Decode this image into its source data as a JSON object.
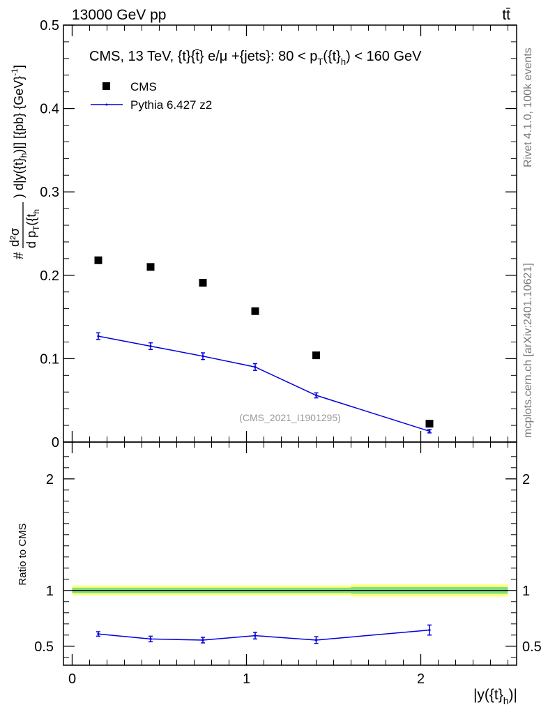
{
  "header": {
    "left_label": "13000 GeV pp",
    "right_label": "tt̄",
    "side_label_top": "Rivet 4.1.0,  100k events",
    "side_label_bottom": "mcplots.cern.ch [arXiv:2401.10621]"
  },
  "colors": {
    "data_marker": "#000000",
    "mc_line": "#0000dd",
    "band_yellow": "#ffff80",
    "band_green": "#7fe07f",
    "watermark": "#999999"
  },
  "chart_data": [
    {
      "panel": "main",
      "type": "scatter",
      "title": "CMS, 13 TeV, {t}{t̄} e/μ +{jets}: 80 <  p_T({t}_h) < 160 GeV",
      "title_main": "CMS, 13 TeV, {t}{t̄} e/μ +{jets}: 80 <  p",
      "title_sub1": "T",
      "title_mid": "({t}",
      "title_sub2": "h",
      "title_end": ") < 160 GeV",
      "ylabel": "#d²σ/d p_T({t}_h) d|y({t}_h)| [{pb} {GeV}⁻¹]",
      "ylabel_parts": {
        "hash": "#",
        "num": "d²σ",
        "den_a": "d p",
        "den_sub": "T",
        "den_b": "({t",
        "den_sub2": "h",
        "rest_a": ") d|y({t}",
        "rest_sub": "h",
        "rest_b": ")|] [{pb} {GeV}",
        "rest_sup": "-1",
        "rest_c": "]"
      },
      "xlim": [
        -0.05,
        2.55
      ],
      "ylim": [
        0,
        0.5
      ],
      "yticks": [
        0,
        0.1,
        0.2,
        0.3,
        0.4,
        0.5
      ],
      "ytick_labels": [
        "0",
        "0.1",
        "0.2",
        "0.3",
        "0.4",
        "0.5"
      ],
      "watermark": "(CMS_2021_I1901295)",
      "legend_position": "top-left",
      "series": [
        {
          "name": "CMS",
          "style": "markers",
          "x": [
            0.15,
            0.45,
            0.75,
            1.05,
            1.4,
            2.05
          ],
          "y": [
            0.218,
            0.21,
            0.191,
            0.157,
            0.104,
            0.022
          ]
        },
        {
          "name": "Pythia 6.427 z2",
          "style": "line",
          "x": [
            0.15,
            0.45,
            0.75,
            1.05,
            1.4,
            2.05
          ],
          "y": [
            0.127,
            0.115,
            0.103,
            0.09,
            0.056,
            0.013
          ],
          "yerr": [
            0.004,
            0.004,
            0.004,
            0.004,
            0.003,
            0.002
          ]
        }
      ]
    },
    {
      "panel": "ratio",
      "type": "line",
      "ylabel": "Ratio to CMS",
      "xlabel": "|y({t}_h)|",
      "xlabel_parts": {
        "a": "|y({t}",
        "sub": "h",
        "b": ")|"
      },
      "xlim": [
        -0.05,
        2.55
      ],
      "ylim": [
        0.33,
        2.33
      ],
      "xticks": [
        0,
        1,
        2
      ],
      "xtick_labels": [
        "0",
        "1",
        "2"
      ],
      "yticks": [
        0.5,
        1,
        2
      ],
      "ytick_labels": [
        "0.5",
        "1",
        "2"
      ],
      "band_edges": [
        0.0,
        0.3,
        0.6,
        0.9,
        1.2,
        1.6,
        2.5
      ],
      "band_outer": [
        0.045,
        0.045,
        0.045,
        0.045,
        0.045,
        0.055
      ],
      "band_inner": [
        0.025,
        0.025,
        0.025,
        0.025,
        0.025,
        0.03
      ],
      "series": [
        {
          "name": "Pythia 6.427 z2",
          "x": [
            0.15,
            0.45,
            0.75,
            1.05,
            1.4,
            2.05
          ],
          "y": [
            0.61,
            0.565,
            0.555,
            0.595,
            0.555,
            0.645
          ],
          "yerr": [
            0.02,
            0.025,
            0.025,
            0.03,
            0.03,
            0.045
          ]
        }
      ]
    }
  ]
}
